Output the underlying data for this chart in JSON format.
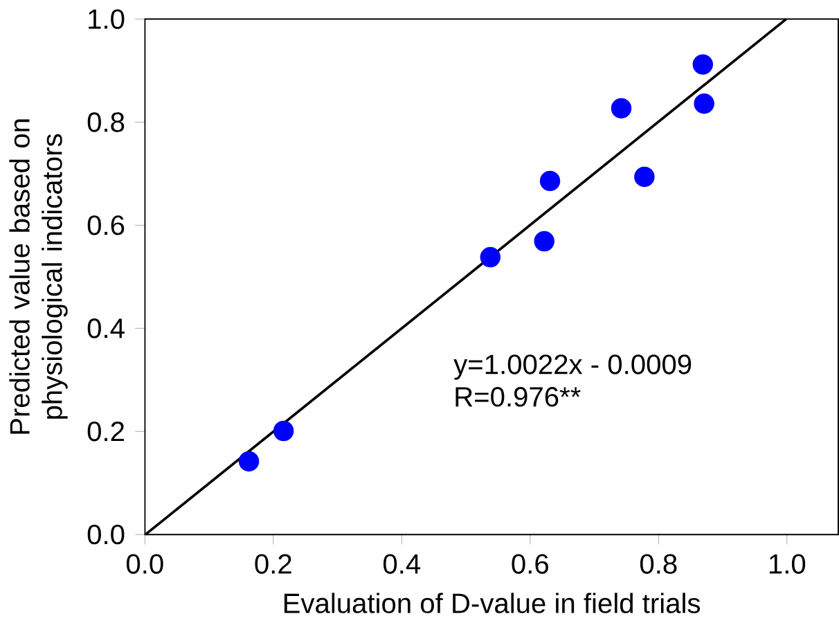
{
  "chart_data": {
    "type": "scatter",
    "xlabel": "Evaluation of D-value in field trials",
    "ylabel": "Predicted value based on physiological indicators",
    "xlim": [
      0,
      1.08
    ],
    "ylim": [
      0,
      1.0
    ],
    "xticks": [
      {
        "value": 0,
        "label": "0.0"
      },
      0.2,
      0.4,
      0.6,
      0.8,
      {
        "value": 1,
        "label": "1.0"
      }
    ],
    "yticks": [
      {
        "value": 0,
        "label": "0.0"
      },
      0.2,
      0.4,
      0.6,
      0.8,
      {
        "value": 1,
        "label": "1.0"
      }
    ],
    "grid": false,
    "series": [
      {
        "marker": "circle",
        "color": "#0000ff",
        "x": [
          0.162,
          0.216,
          0.538,
          0.622,
          0.631,
          0.742,
          0.778,
          0.869,
          0.871
        ],
        "values": [
          0.142,
          0.201,
          0.538,
          0.569,
          0.686,
          0.827,
          0.694,
          0.912,
          0.836
        ]
      },
      {
        "type": "line",
        "marker": "none",
        "color": "#000000",
        "x": [
          0.0009,
          0.9987
        ],
        "values": [
          0,
          1.0
        ]
      }
    ],
    "annotations": [
      "y=1.0022x - 0.0009",
      "R=0.976**"
    ]
  }
}
